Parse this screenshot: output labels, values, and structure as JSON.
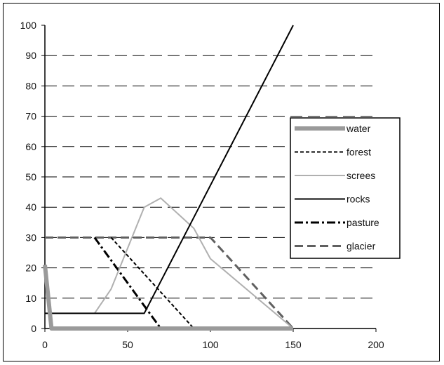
{
  "chart_data": {
    "type": "line",
    "title": "",
    "xlabel": "",
    "ylabel": "",
    "xlim": [
      0,
      200
    ],
    "ylim": [
      0,
      100
    ],
    "x_ticks": [
      "0",
      "50",
      "100",
      "150",
      "200"
    ],
    "y_ticks": [
      "0",
      "10",
      "20",
      "30",
      "40",
      "50",
      "60",
      "70",
      "80",
      "90",
      "100"
    ],
    "grid": "horizontal dashed",
    "legend_position": "right",
    "series": [
      {
        "name": "water",
        "color": "#9a9a9a",
        "style": "thick-solid",
        "points": [
          [
            0,
            21
          ],
          [
            4,
            0
          ],
          [
            150,
            0
          ]
        ]
      },
      {
        "name": "forest",
        "color": "#000000",
        "style": "dotted",
        "points": [
          [
            40,
            30
          ],
          [
            90,
            0
          ],
          [
            150,
            0
          ]
        ]
      },
      {
        "name": "screes",
        "color": "#b0b0b0",
        "style": "solid",
        "points": [
          [
            30,
            5
          ],
          [
            40,
            13
          ],
          [
            60,
            40
          ],
          [
            70,
            43
          ],
          [
            90,
            33
          ],
          [
            100,
            23
          ],
          [
            150,
            0
          ]
        ]
      },
      {
        "name": "rocks",
        "color": "#000000",
        "style": "solid",
        "points": [
          [
            0,
            5
          ],
          [
            60,
            5
          ],
          [
            150,
            100
          ]
        ]
      },
      {
        "name": "pasture",
        "color": "#000000",
        "style": "dash-dot",
        "points": [
          [
            30,
            30
          ],
          [
            70,
            0
          ],
          [
            150,
            0
          ]
        ]
      },
      {
        "name": "glacier",
        "color": "#606060",
        "style": "dashed",
        "points": [
          [
            0,
            30
          ],
          [
            100,
            30
          ],
          [
            150,
            0
          ]
        ]
      }
    ]
  }
}
